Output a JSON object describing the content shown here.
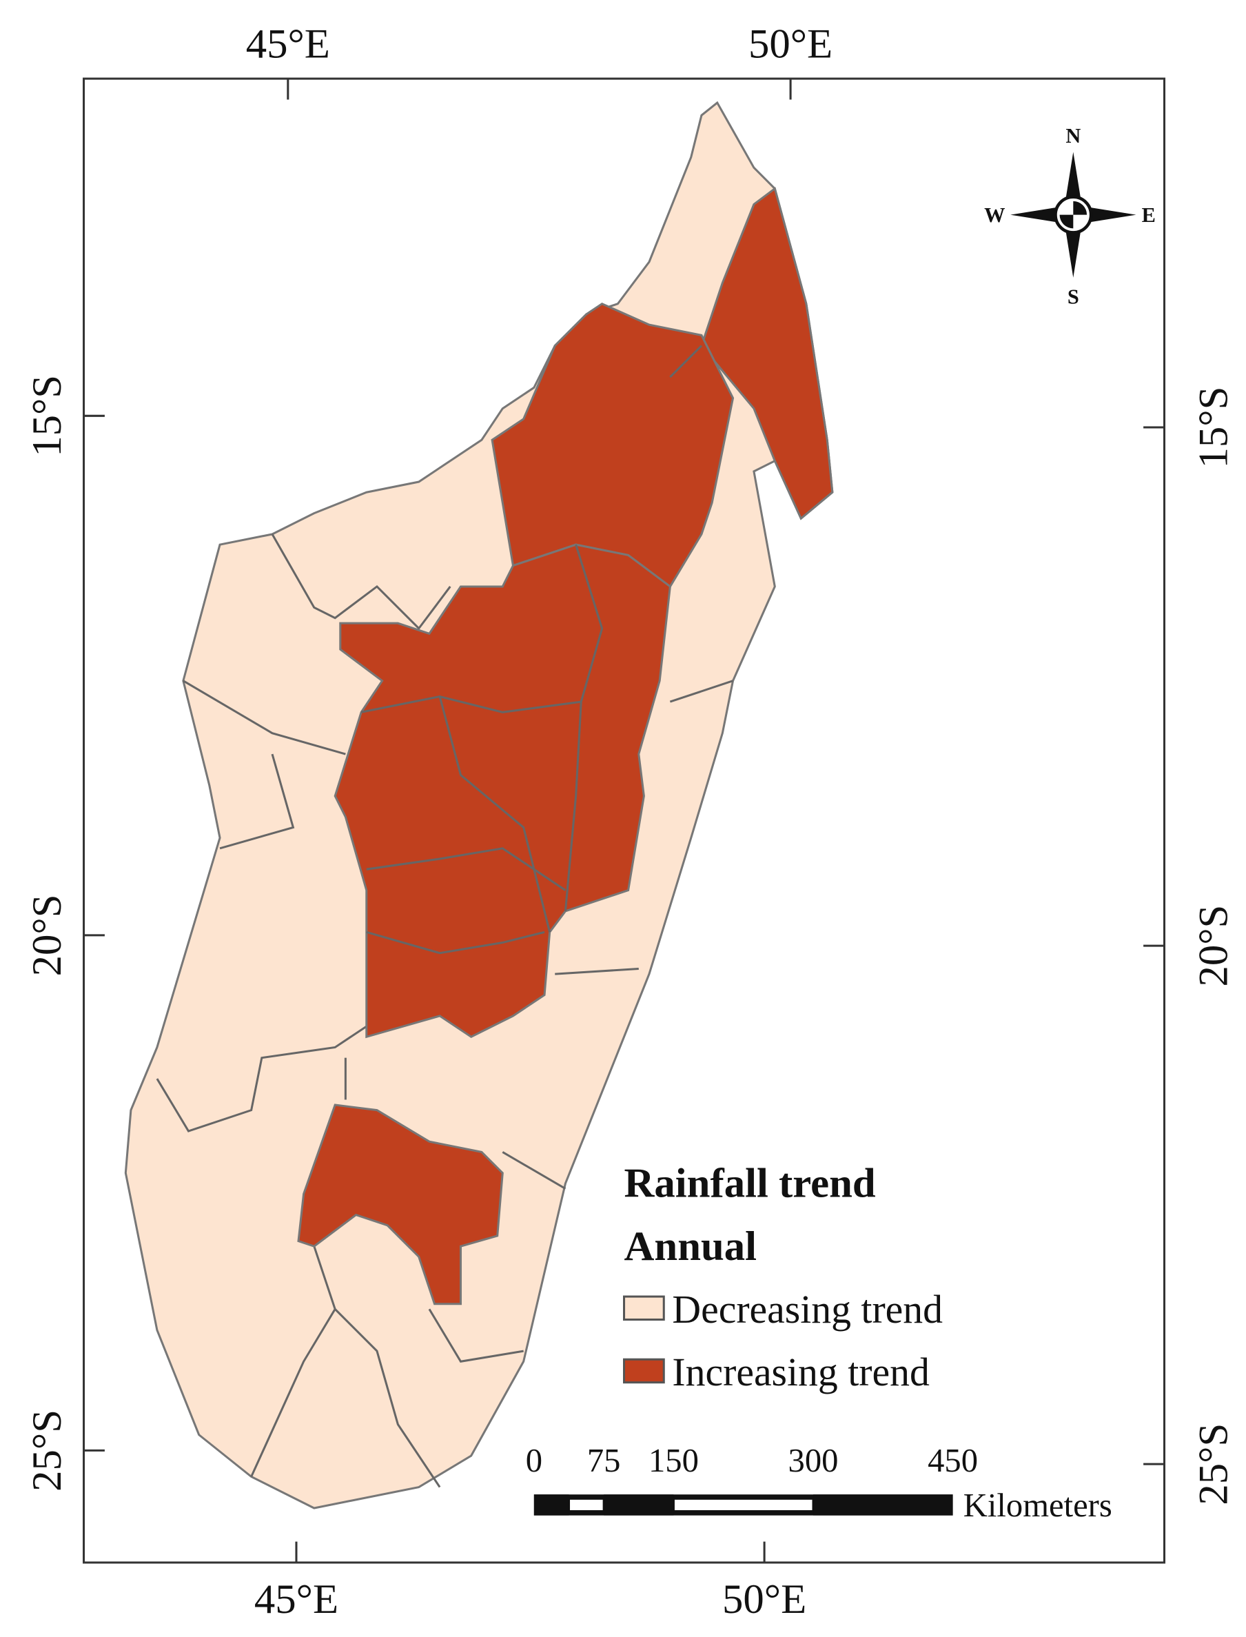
{
  "axes": {
    "top": [
      "45°E",
      "50°E"
    ],
    "bottom": [
      "45°E",
      "50°E"
    ],
    "left": [
      "15°S",
      "20°S",
      "25°S"
    ],
    "right": [
      "15°S",
      "20°S",
      "25°S"
    ]
  },
  "compass": {
    "north": "N",
    "west": "W",
    "east": "E",
    "south": "S"
  },
  "legend": {
    "title": "Rainfall trend",
    "subtitle": "Annual",
    "items": [
      {
        "label": "Decreasing trend",
        "color": "#fde4d0"
      },
      {
        "label": "Increasing trend",
        "color": "#c0401e"
      }
    ]
  },
  "scale_bar": {
    "ticks": [
      0,
      75,
      150,
      300,
      450
    ],
    "unit": "Kilometers"
  }
}
